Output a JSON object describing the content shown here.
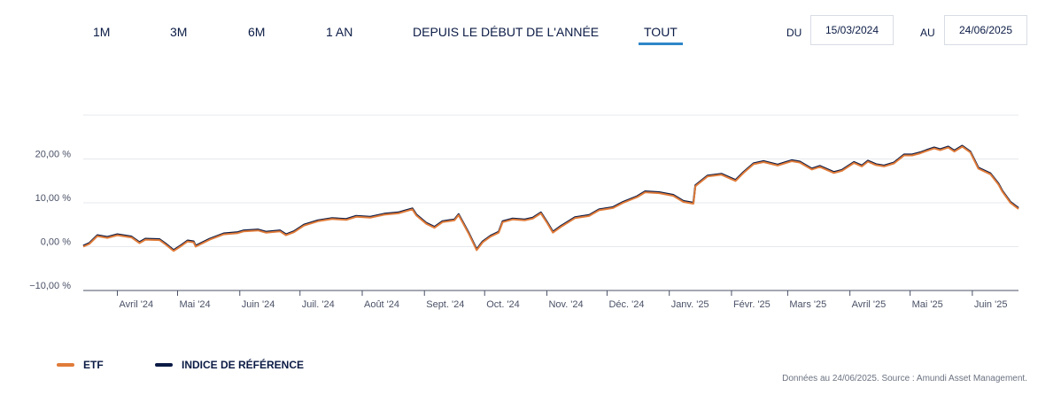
{
  "tabs": [
    {
      "label": "1M"
    },
    {
      "label": "3M"
    },
    {
      "label": "6M"
    },
    {
      "label": "1 AN"
    },
    {
      "label": "DEPUIS LE DÉBUT DE L'ANNÉE"
    },
    {
      "label": "TOUT",
      "active": true
    }
  ],
  "date_range": {
    "from_label": "DU",
    "from_value": "15/03/2024",
    "to_label": "AU",
    "to_value": "24/06/2025"
  },
  "legend": {
    "etf": "ETF",
    "index": "INDICE DE RÉFÉRENCE"
  },
  "source": "Données au 24/06/2025. Source : Amundi Asset Management.",
  "colors": {
    "etf": "#e07b39",
    "index": "#0b1b45",
    "active_tab": "#2e86c8"
  },
  "chart_data": {
    "type": "line",
    "y_ticks": [
      {
        "value": -10,
        "label": "−10,00 %"
      },
      {
        "value": 0,
        "label": "0,00 %"
      },
      {
        "value": 10,
        "label": "10,00 %"
      },
      {
        "value": 20,
        "label": "20,00 %"
      }
    ],
    "ylim": [
      -10,
      30
    ],
    "grid": true,
    "x_range": [
      "2024-03-15",
      "2025-06-24"
    ],
    "x_ticks": [
      {
        "date": "2024-04-01",
        "label": "Avril '24"
      },
      {
        "date": "2024-05-01",
        "label": "Mai '24"
      },
      {
        "date": "2024-06-01",
        "label": "Juin '24"
      },
      {
        "date": "2024-07-01",
        "label": "Juil. '24"
      },
      {
        "date": "2024-08-01",
        "label": "Août '24"
      },
      {
        "date": "2024-09-01",
        "label": "Sept. '24"
      },
      {
        "date": "2024-10-01",
        "label": "Oct. '24"
      },
      {
        "date": "2024-11-01",
        "label": "Nov. '24"
      },
      {
        "date": "2024-12-01",
        "label": "Déc. '24"
      },
      {
        "date": "2025-01-01",
        "label": "Janv. '25"
      },
      {
        "date": "2025-02-01",
        "label": "Févr. '25"
      },
      {
        "date": "2025-03-01",
        "label": "Mars '25"
      },
      {
        "date": "2025-04-01",
        "label": "Avril '25"
      },
      {
        "date": "2025-05-01",
        "label": "Mai '25"
      },
      {
        "date": "2025-06-01",
        "label": "Juin '25"
      }
    ],
    "legend_position": "bottom-left",
    "series": [
      {
        "name": "ETF",
        "points": [
          [
            "2024-03-15",
            0.0
          ],
          [
            "2024-03-18",
            0.6
          ],
          [
            "2024-03-22",
            2.4
          ],
          [
            "2024-03-27",
            2.0
          ],
          [
            "2024-04-01",
            2.6
          ],
          [
            "2024-04-08",
            2.1
          ],
          [
            "2024-04-12",
            0.8
          ],
          [
            "2024-04-15",
            1.6
          ],
          [
            "2024-04-22",
            1.5
          ],
          [
            "2024-04-25",
            0.5
          ],
          [
            "2024-04-29",
            -1.0
          ],
          [
            "2024-05-03",
            0.2
          ],
          [
            "2024-05-06",
            1.2
          ],
          [
            "2024-05-09",
            1.0
          ],
          [
            "2024-05-10",
            0.0
          ],
          [
            "2024-05-17",
            1.6
          ],
          [
            "2024-05-24",
            2.8
          ],
          [
            "2024-05-31",
            3.1
          ],
          [
            "2024-06-03",
            3.5
          ],
          [
            "2024-06-10",
            3.7
          ],
          [
            "2024-06-14",
            3.2
          ],
          [
            "2024-06-21",
            3.5
          ],
          [
            "2024-06-24",
            2.6
          ],
          [
            "2024-06-28",
            3.3
          ],
          [
            "2024-07-03",
            4.8
          ],
          [
            "2024-07-10",
            5.8
          ],
          [
            "2024-07-17",
            6.3
          ],
          [
            "2024-07-24",
            6.1
          ],
          [
            "2024-07-29",
            6.8
          ],
          [
            "2024-08-05",
            6.6
          ],
          [
            "2024-08-12",
            7.3
          ],
          [
            "2024-08-19",
            7.6
          ],
          [
            "2024-08-22",
            8.0
          ],
          [
            "2024-08-26",
            8.5
          ],
          [
            "2024-08-28",
            7.1
          ],
          [
            "2024-09-02",
            5.2
          ],
          [
            "2024-09-06",
            4.3
          ],
          [
            "2024-09-10",
            5.6
          ],
          [
            "2024-09-16",
            6.0
          ],
          [
            "2024-09-18",
            7.2
          ],
          [
            "2024-09-23",
            3.0
          ],
          [
            "2024-09-27",
            -0.8
          ],
          [
            "2024-09-30",
            1.0
          ],
          [
            "2024-10-04",
            2.3
          ],
          [
            "2024-10-08",
            3.2
          ],
          [
            "2024-10-10",
            5.6
          ],
          [
            "2024-10-15",
            6.2
          ],
          [
            "2024-10-21",
            6.0
          ],
          [
            "2024-10-25",
            6.4
          ],
          [
            "2024-10-29",
            7.6
          ],
          [
            "2024-11-01",
            5.5
          ],
          [
            "2024-11-04",
            3.2
          ],
          [
            "2024-11-08",
            4.5
          ],
          [
            "2024-11-15",
            6.5
          ],
          [
            "2024-11-22",
            7.0
          ],
          [
            "2024-11-27",
            8.3
          ],
          [
            "2024-12-04",
            8.8
          ],
          [
            "2024-12-09",
            10.0
          ],
          [
            "2024-12-16",
            11.3
          ],
          [
            "2024-12-20",
            12.4
          ],
          [
            "2024-12-27",
            12.2
          ],
          [
            "2025-01-03",
            11.6
          ],
          [
            "2025-01-08",
            10.2
          ],
          [
            "2025-01-13",
            9.8
          ],
          [
            "2025-01-14",
            13.8
          ],
          [
            "2025-01-20",
            16.0
          ],
          [
            "2025-01-27",
            16.4
          ],
          [
            "2025-02-03",
            15.0
          ],
          [
            "2025-02-07",
            16.8
          ],
          [
            "2025-02-12",
            18.8
          ],
          [
            "2025-02-17",
            19.3
          ],
          [
            "2025-02-24",
            18.5
          ],
          [
            "2025-03-03",
            19.5
          ],
          [
            "2025-03-07",
            19.2
          ],
          [
            "2025-03-13",
            17.6
          ],
          [
            "2025-03-17",
            18.2
          ],
          [
            "2025-03-24",
            16.8
          ],
          [
            "2025-03-28",
            17.3
          ],
          [
            "2025-04-03",
            19.1
          ],
          [
            "2025-04-07",
            18.3
          ],
          [
            "2025-04-10",
            19.4
          ],
          [
            "2025-04-14",
            18.6
          ],
          [
            "2025-04-18",
            18.3
          ],
          [
            "2025-04-23",
            19.0
          ],
          [
            "2025-04-28",
            20.8
          ],
          [
            "2025-05-02",
            20.8
          ],
          [
            "2025-05-06",
            21.3
          ],
          [
            "2025-05-09",
            21.8
          ],
          [
            "2025-05-13",
            22.4
          ],
          [
            "2025-05-16",
            22.0
          ],
          [
            "2025-05-20",
            22.6
          ],
          [
            "2025-05-23",
            21.7
          ],
          [
            "2025-05-27",
            22.8
          ],
          [
            "2025-05-31",
            21.5
          ],
          [
            "2025-06-04",
            17.8
          ],
          [
            "2025-06-10",
            16.5
          ],
          [
            "2025-06-14",
            14.2
          ],
          [
            "2025-06-16",
            12.5
          ],
          [
            "2025-06-20",
            10.0
          ],
          [
            "2025-06-24",
            8.6
          ]
        ]
      }
    ]
  }
}
